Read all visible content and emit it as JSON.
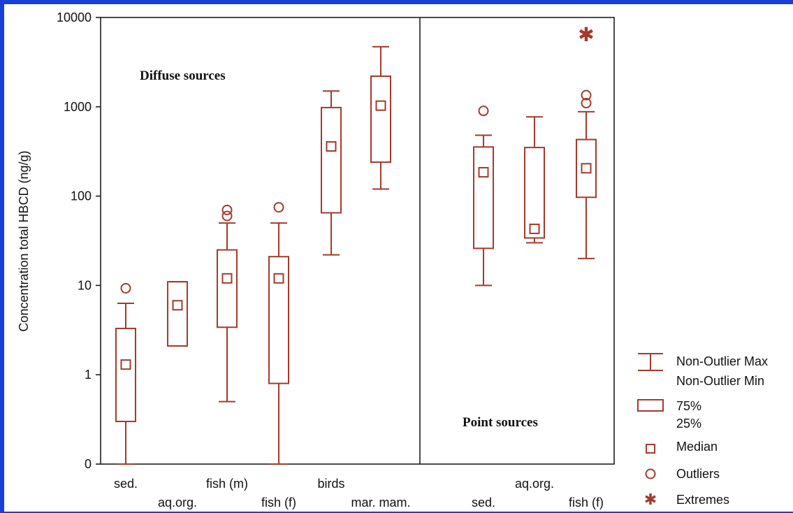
{
  "chart_data": {
    "type": "box",
    "ylabel": "Concentration total HBCD (ng/g)",
    "yscale": "log",
    "y_ticks": [
      "0",
      "1",
      "10",
      "100",
      "1000",
      "10000"
    ],
    "y_tick_values": [
      0.1,
      1,
      10,
      100,
      1000,
      10000
    ],
    "color": "#a33a2c",
    "groups": [
      {
        "label": "Diffuse sources",
        "categories": [
          {
            "name": "sed.",
            "min": 0.1,
            "q1": 0.3,
            "median": 1.3,
            "q3": 3.3,
            "max": 6.3,
            "outliers": [
              9.3
            ],
            "extremes": []
          },
          {
            "name": "aq.org.",
            "min": 2.1,
            "q1": 2.1,
            "median": 6.0,
            "q3": 11,
            "max": 11,
            "outliers": [],
            "extremes": []
          },
          {
            "name": "fish (m)",
            "min": 0.5,
            "q1": 3.4,
            "median": 12,
            "q3": 25,
            "max": 50,
            "outliers": [
              60,
              70
            ],
            "extremes": []
          },
          {
            "name": "fish (f)",
            "min": 0.1,
            "q1": 0.8,
            "median": 12,
            "q3": 21,
            "max": 50,
            "outliers": [
              75
            ],
            "extremes": []
          },
          {
            "name": "birds",
            "min": 22,
            "q1": 65,
            "median": 360,
            "q3": 980,
            "max": 1500,
            "outliers": [],
            "extremes": []
          },
          {
            "name": "mar. mam.",
            "min": 120,
            "q1": 240,
            "median": 1030,
            "q3": 2200,
            "max": 4700,
            "outliers": [],
            "extremes": []
          }
        ]
      },
      {
        "label": "Point sources",
        "categories": [
          {
            "name": "sed.",
            "min": 10,
            "q1": 26,
            "median": 185,
            "q3": 355,
            "max": 480,
            "outliers": [
              900
            ],
            "extremes": []
          },
          {
            "name": "aq.org.",
            "min": 30,
            "q1": 34,
            "median": 43,
            "q3": 350,
            "max": 770,
            "outliers": [],
            "extremes": []
          },
          {
            "name": "fish (f)",
            "min": 20,
            "q1": 97,
            "median": 205,
            "q3": 430,
            "max": 880,
            "outliers": [
              1100,
              1350
            ],
            "extremes": [
              6500
            ]
          }
        ]
      }
    ],
    "legend": [
      {
        "symbol": "whisker",
        "lines": [
          "Non-Outlier Max",
          "Non-Outlier Min"
        ]
      },
      {
        "symbol": "box",
        "lines": [
          "75%",
          "25%"
        ]
      },
      {
        "symbol": "square",
        "lines": [
          "Median"
        ]
      },
      {
        "symbol": "circle",
        "lines": [
          "Outliers"
        ]
      },
      {
        "symbol": "star",
        "lines": [
          "Extremes"
        ]
      }
    ]
  }
}
